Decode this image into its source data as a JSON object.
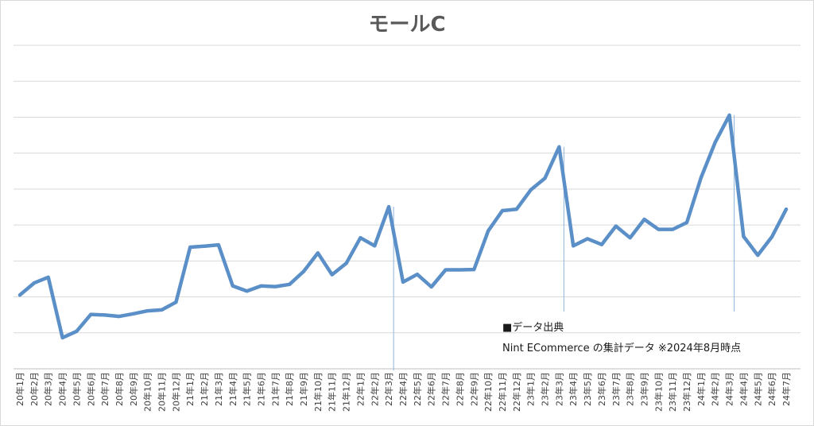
{
  "chart_data": {
    "type": "line",
    "title": "モールC",
    "xlabel": "",
    "ylabel": "",
    "ylim": [
      0,
      100
    ],
    "y_tick_labels_shown": false,
    "grid": true,
    "categories": [
      "20年1月",
      "20年2月",
      "20年3月",
      "20年4月",
      "20年5月",
      "20年6月",
      "20年7月",
      "20年8月",
      "20年9月",
      "20年10月",
      "20年11月",
      "20年12月",
      "21年1月",
      "21年2月",
      "21年3月",
      "21年4月",
      "21年5月",
      "21年6月",
      "21年7月",
      "21年8月",
      "21年9月",
      "21年10月",
      "21年11月",
      "21年12月",
      "22年1月",
      "22年2月",
      "22年3月",
      "22年4月",
      "22年5月",
      "22年6月",
      "22年7月",
      "22年8月",
      "22年9月",
      "22年10月",
      "22年11月",
      "22年12月",
      "23年1月",
      "23年2月",
      "23年3月",
      "23年4月",
      "23年5月",
      "23年6月",
      "23年7月",
      "23年8月",
      "23年9月",
      "23年10月",
      "23年11月",
      "23年12月",
      "24年1月",
      "24年2月",
      "24年3月",
      "24年4月",
      "24年5月",
      "24年6月",
      "24年7月"
    ],
    "series": [
      {
        "color": "#5b8fc7",
        "values": [
          22.8,
          26.5,
          28.3,
          9.6,
          11.6,
          16.8,
          16.6,
          16.2,
          17.0,
          17.9,
          18.2,
          20.6,
          37.6,
          37.9,
          38.3,
          25.6,
          24.0,
          25.6,
          25.4,
          26.1,
          30.1,
          35.8,
          29.1,
          32.6,
          40.5,
          38.0,
          50.1,
          26.8,
          29.2,
          25.3,
          30.6,
          30.6,
          30.7,
          42.6,
          48.9,
          49.3,
          55.3,
          58.9,
          68.6,
          38.0,
          40.2,
          38.4,
          44.1,
          40.5,
          46.2,
          43.1,
          43.1,
          45.2,
          59.1,
          70.0,
          78.4,
          40.9,
          35.1,
          40.8,
          49.3
        ]
      }
    ],
    "drop_lines_at": [
      "22年3月",
      "23年3月",
      "24年3月"
    ]
  },
  "source_note": {
    "heading": "■データ出典",
    "text": "Nint ECommerce の集計データ ※2024年8月時点"
  }
}
